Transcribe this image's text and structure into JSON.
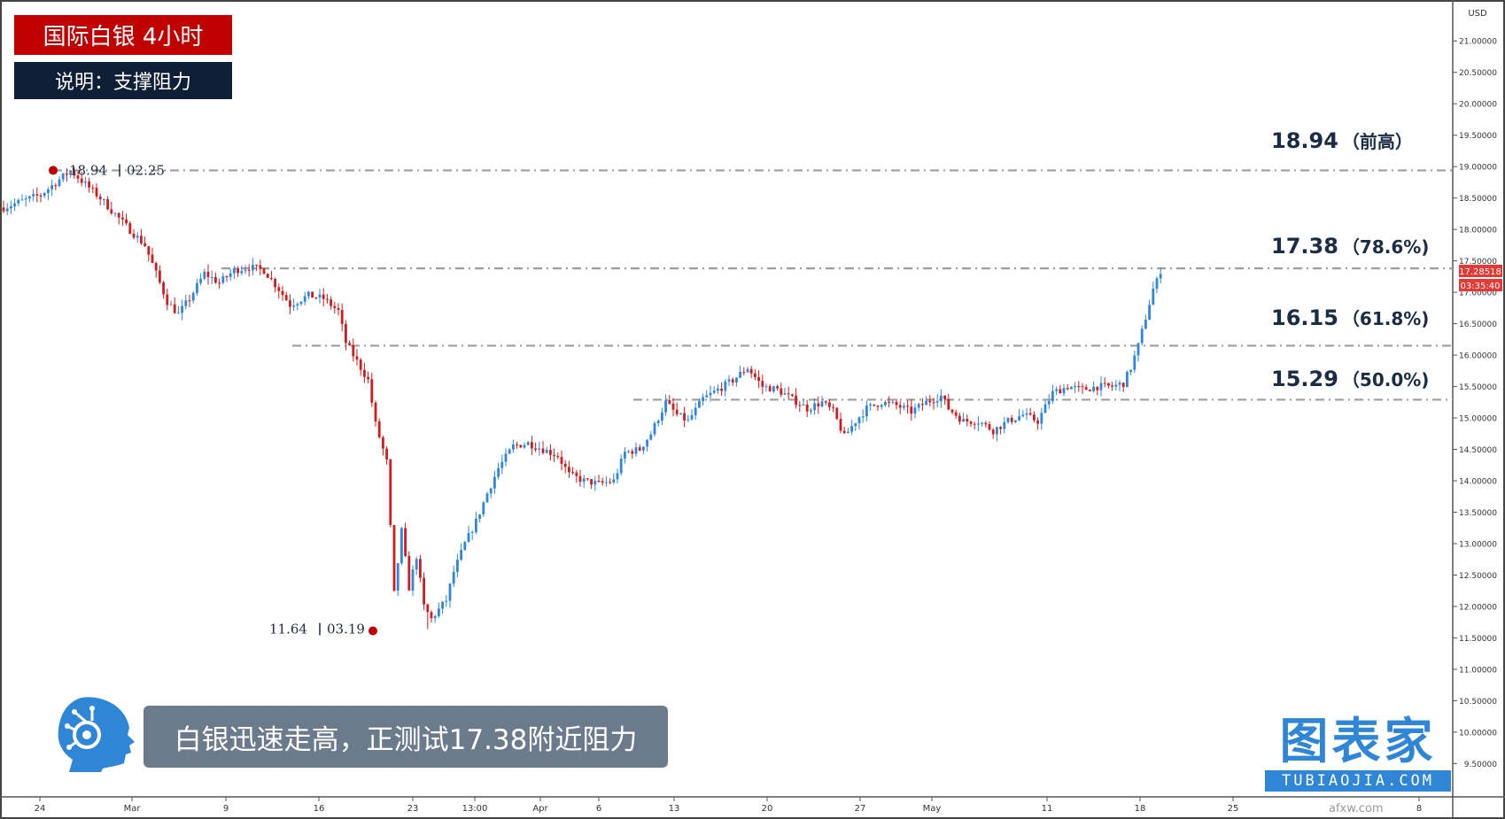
{
  "title_badge": "国际白银 4小时",
  "description_badge": "说明：支撑阻力",
  "caption": "白银迅速走高，正测试17.38附近阻力",
  "logo": {
    "main": "图表家",
    "sub": "TUBIAOJIA.COM"
  },
  "watermark": "afxw.com",
  "colors": {
    "up": "#2e86de",
    "down": "#d01c1c",
    "level_line": "#9e9e9e",
    "price_tag": "#e53935"
  },
  "chart_data": {
    "type": "candlestick",
    "title": "",
    "currency": "USD",
    "ylim": [
      9.15,
      21.45
    ],
    "y_ticks": [
      "9.50000",
      "10.00000",
      "10.50000",
      "11.00000",
      "11.50000",
      "12.00000",
      "12.50000",
      "13.00000",
      "13.50000",
      "14.00000",
      "14.50000",
      "15.00000",
      "15.50000",
      "16.00000",
      "16.50000",
      "17.00000",
      "17.50000",
      "18.00000",
      "18.50000",
      "19.00000",
      "19.50000",
      "20.00000",
      "20.50000",
      "21.00000"
    ],
    "x_tick_labels": [
      "24",
      "Mar",
      "9",
      "16",
      "23",
      "13:00",
      "Apr",
      "6",
      "13",
      "20",
      "27",
      "May",
      "11",
      "18",
      "25",
      "8"
    ],
    "current_price": "17.28518",
    "countdown": "03:35:40",
    "levels": [
      {
        "price": 18.94,
        "label": "18.94",
        "note": "（前高）"
      },
      {
        "price": 17.38,
        "label": "17.38",
        "note": "（78.6%)"
      },
      {
        "price": 16.15,
        "label": "16.15",
        "note": "（61.8%)"
      },
      {
        "price": 15.29,
        "label": "15.29",
        "note": "（50.0%)"
      }
    ],
    "annotations": [
      {
        "kind": "high",
        "price": 18.94,
        "price_label": "18.94",
        "date_label": "02.25"
      },
      {
        "kind": "low",
        "price": 11.64,
        "price_label": "11.64",
        "date_label": "03.19"
      }
    ],
    "anchors": [
      [
        0,
        18.35
      ],
      [
        10,
        18.55
      ],
      [
        18,
        18.94
      ],
      [
        26,
        18.5
      ],
      [
        33,
        18.05
      ],
      [
        38,
        17.75
      ],
      [
        41,
        17.3
      ],
      [
        44,
        16.85
      ],
      [
        47,
        16.65
      ],
      [
        50,
        16.9
      ],
      [
        54,
        17.3
      ],
      [
        58,
        17.15
      ],
      [
        62,
        17.35
      ],
      [
        66,
        17.4
      ],
      [
        70,
        17.35
      ],
      [
        74,
        17.05
      ],
      [
        77,
        16.8
      ],
      [
        82,
        16.95
      ],
      [
        86,
        16.9
      ],
      [
        90,
        16.7
      ],
      [
        92,
        16.2
      ],
      [
        95,
        15.9
      ],
      [
        98,
        15.6
      ],
      [
        100,
        14.9
      ],
      [
        103,
        14.3
      ],
      [
        105,
        12.2
      ],
      [
        107,
        13.2
      ],
      [
        109,
        12.3
      ],
      [
        111,
        12.8
      ],
      [
        113,
        12.0
      ],
      [
        115,
        11.8
      ],
      [
        117,
        11.95
      ],
      [
        119,
        12.1
      ],
      [
        121,
        12.55
      ],
      [
        124,
        13.0
      ],
      [
        127,
        13.35
      ],
      [
        130,
        13.8
      ],
      [
        133,
        14.2
      ],
      [
        137,
        14.55
      ],
      [
        141,
        14.6
      ],
      [
        145,
        14.5
      ],
      [
        149,
        14.4
      ],
      [
        152,
        14.1
      ],
      [
        156,
        14.0
      ],
      [
        160,
        13.95
      ],
      [
        164,
        14.0
      ],
      [
        167,
        14.45
      ],
      [
        171,
        14.5
      ],
      [
        174,
        14.75
      ],
      [
        178,
        15.25
      ],
      [
        181,
        15.05
      ],
      [
        184,
        14.95
      ],
      [
        188,
        15.3
      ],
      [
        192,
        15.45
      ],
      [
        196,
        15.6
      ],
      [
        200,
        15.8
      ],
      [
        204,
        15.5
      ],
      [
        208,
        15.45
      ],
      [
        212,
        15.3
      ],
      [
        216,
        15.15
      ],
      [
        220,
        15.25
      ],
      [
        223,
        15.1
      ],
      [
        226,
        14.7
      ],
      [
        229,
        14.95
      ],
      [
        232,
        15.15
      ],
      [
        236,
        15.25
      ],
      [
        240,
        15.2
      ],
      [
        244,
        15.1
      ],
      [
        248,
        15.25
      ],
      [
        252,
        15.35
      ],
      [
        254,
        15.15
      ],
      [
        258,
        14.95
      ],
      [
        262,
        14.95
      ],
      [
        266,
        14.8
      ],
      [
        270,
        14.95
      ],
      [
        274,
        15.05
      ],
      [
        278,
        14.95
      ],
      [
        282,
        15.4
      ],
      [
        286,
        15.5
      ],
      [
        290,
        15.45
      ],
      [
        294,
        15.5
      ],
      [
        298,
        15.5
      ],
      [
        301,
        15.55
      ],
      [
        303,
        15.8
      ],
      [
        305,
        16.15
      ],
      [
        307,
        16.6
      ],
      [
        309,
        17.05
      ],
      [
        311,
        17.29
      ]
    ]
  }
}
